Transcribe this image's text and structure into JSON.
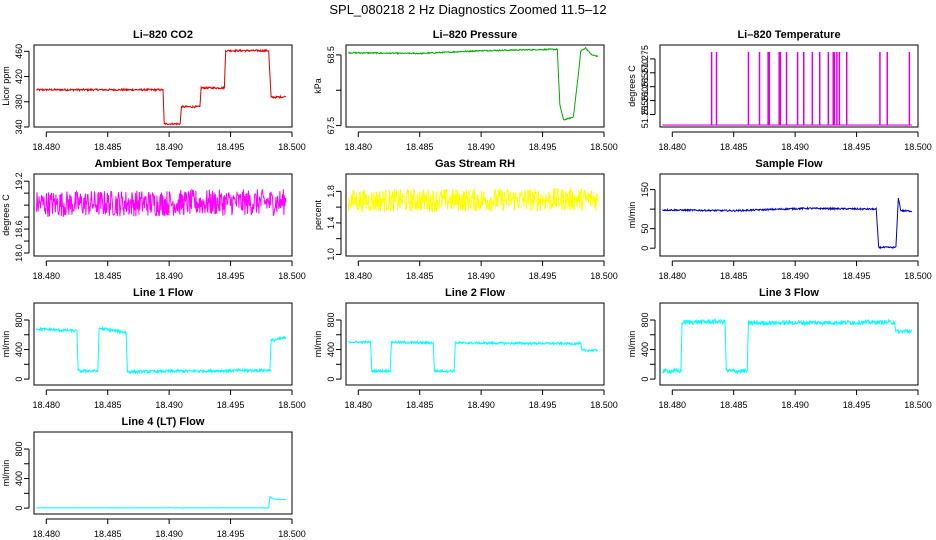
{
  "figure": {
    "title": "SPL_080218 2 Hz Diagnostics Zoomed 11.5–12"
  },
  "chart_data": [
    {
      "type": "line",
      "title": "Li–820 CO2",
      "xlabel": "",
      "ylabel": "Licor ppm",
      "xlim": [
        18.479,
        18.5
      ],
      "ylim": [
        340,
        470
      ],
      "xticks": [
        18.48,
        18.485,
        18.49,
        18.495,
        18.5
      ],
      "xtick_labels": [
        "18.480",
        "18.485",
        "18.490",
        "18.495",
        "18.500"
      ],
      "yticks": [
        340,
        380,
        420,
        460
      ],
      "ytick_labels": [
        "340",
        "380",
        "420",
        "460"
      ],
      "color": "#dd0000",
      "noise": 1.5,
      "series": [
        {
          "x": [
            18.4792,
            18.4895,
            18.4896,
            18.4909,
            18.491,
            18.4925,
            18.4926,
            18.4945,
            18.4946,
            18.4981,
            18.4983,
            18.4995
          ],
          "y": [
            399,
            399,
            345,
            345,
            372,
            372,
            402,
            402,
            461,
            461,
            387,
            388
          ]
        }
      ]
    },
    {
      "type": "line",
      "title": "Li–820 Pressure",
      "xlabel": "",
      "ylabel": "kPa",
      "xlim": [
        18.479,
        18.5
      ],
      "ylim": [
        67.48,
        68.64
      ],
      "xticks": [
        18.48,
        18.485,
        18.49,
        18.495,
        18.5
      ],
      "xtick_labels": [
        "18.480",
        "18.485",
        "18.490",
        "18.495",
        "18.500"
      ],
      "yticks": [
        67.5,
        68.0,
        68.5
      ],
      "ytick_labels": [
        "67.5",
        "",
        "68.5"
      ],
      "color": "#00aa00",
      "noise": 0.008,
      "series": [
        {
          "x": [
            18.4792,
            18.485,
            18.49,
            18.4962,
            18.4964,
            18.4967,
            18.4975,
            18.4979,
            18.4981,
            18.4985,
            18.499,
            18.4995
          ],
          "y": [
            68.53,
            68.52,
            68.56,
            68.58,
            67.8,
            67.58,
            67.62,
            68.2,
            68.55,
            68.6,
            68.5,
            68.48
          ]
        }
      ]
    },
    {
      "type": "line",
      "title": "Li–820 Temperature",
      "xlabel": "",
      "ylabel": "degrees C",
      "xlim": [
        18.479,
        18.5
      ],
      "ylim": [
        51.2505,
        51.28
      ],
      "xticks": [
        18.48,
        18.485,
        18.49,
        18.495,
        18.5
      ],
      "xtick_labels": [
        "18.480",
        "18.485",
        "18.490",
        "18.495",
        "18.500"
      ],
      "yticks": [
        51.255,
        51.26,
        51.265,
        51.27,
        51.275
      ],
      "ytick_labels": [
        "51.255",
        "51.260",
        "51.265",
        "51.270",
        "51.275"
      ],
      "color": "#dd00dd",
      "noise": 0,
      "baseline": 51.2512,
      "spikes": [
        18.4832,
        18.4836,
        18.4862,
        18.4871,
        18.4878,
        18.4879,
        18.4887,
        18.4888,
        18.4893,
        18.4902,
        18.4907,
        18.4914,
        18.492,
        18.4927,
        18.4931,
        18.4932,
        18.4934,
        18.4936,
        18.4942,
        18.4969,
        18.4975,
        18.4993
      ],
      "spike_top": 51.2775
    },
    {
      "type": "line",
      "title": "Ambient Box Temperature",
      "xlabel": "",
      "ylabel": "degrees C",
      "xlim": [
        18.479,
        18.5
      ],
      "ylim": [
        17.95,
        19.32
      ],
      "xticks": [
        18.48,
        18.485,
        18.49,
        18.495,
        18.5
      ],
      "xtick_labels": [
        "18.480",
        "18.485",
        "18.490",
        "18.495",
        "18.500"
      ],
      "yticks": [
        18.0,
        18.2,
        18.4,
        18.6,
        18.8,
        19.0,
        19.2
      ],
      "ytick_labels": [
        "18.0",
        "",
        "18.6",
        "",
        "",
        "",
        "19.2"
      ],
      "color": "#ff00ff",
      "noise": 0.22,
      "series": [
        {
          "x": [
            18.4792,
            18.4995
          ],
          "y": [
            18.82,
            18.85
          ]
        }
      ]
    },
    {
      "type": "line",
      "title": "Gas Stream RH",
      "xlabel": "",
      "ylabel": "percent",
      "xlim": [
        18.479,
        18.5
      ],
      "ylim": [
        0.98,
        2.02
      ],
      "xticks": [
        18.48,
        18.485,
        18.49,
        18.495,
        18.5
      ],
      "xtick_labels": [
        "18.480",
        "18.485",
        "18.490",
        "18.495",
        "18.500"
      ],
      "yticks": [
        1.0,
        1.2,
        1.4,
        1.6,
        1.8
      ],
      "ytick_labels": [
        "1.0",
        "",
        "1.4",
        "",
        "1.8"
      ],
      "color": "#ffff00",
      "noise": 0.15,
      "series": [
        {
          "x": [
            18.4792,
            18.4995
          ],
          "y": [
            1.68,
            1.7
          ]
        }
      ]
    },
    {
      "type": "line",
      "title": "Sample Flow",
      "xlabel": "",
      "ylabel": "ml/min",
      "xlim": [
        18.479,
        18.5
      ],
      "ylim": [
        -20,
        190
      ],
      "xticks": [
        18.48,
        18.485,
        18.49,
        18.495,
        18.5
      ],
      "xtick_labels": [
        "18.480",
        "18.485",
        "18.490",
        "18.495",
        "18.500"
      ],
      "yticks": [
        0,
        50,
        100,
        150
      ],
      "ytick_labels": [
        "0",
        "50",
        "",
        "150"
      ],
      "color": "#0000bb",
      "noise": 2,
      "series": [
        {
          "x": [
            18.4792,
            18.485,
            18.4908,
            18.4966,
            18.4968,
            18.4982,
            18.4984,
            18.4986,
            18.4995
          ],
          "y": [
            98,
            96,
            102,
            100,
            2,
            2,
            130,
            96,
            95
          ]
        }
      ]
    },
    {
      "type": "line",
      "title": "Line 1 Flow",
      "xlabel": "",
      "ylabel": "ml/min",
      "xlim": [
        18.479,
        18.5
      ],
      "ylim": [
        -80,
        1030
      ],
      "xticks": [
        18.48,
        18.485,
        18.49,
        18.495,
        18.5
      ],
      "xtick_labels": [
        "18.480",
        "18.485",
        "18.490",
        "18.495",
        "18.500"
      ],
      "yticks": [
        0,
        200,
        400,
        600,
        800
      ],
      "ytick_labels": [
        "0",
        "",
        "400",
        "",
        "800"
      ],
      "color": "#00ffff",
      "noise": 20,
      "series": [
        {
          "x": [
            18.4792,
            18.4825,
            18.4826,
            18.4842,
            18.4843,
            18.4865,
            18.4866,
            18.4982,
            18.4983,
            18.4995
          ],
          "y": [
            680,
            650,
            110,
            110,
            690,
            630,
            100,
            120,
            520,
            560
          ]
        }
      ]
    },
    {
      "type": "line",
      "title": "Line 2 Flow",
      "xlabel": "",
      "ylabel": "ml/min",
      "xlim": [
        18.479,
        18.5
      ],
      "ylim": [
        -80,
        1030
      ],
      "xticks": [
        18.48,
        18.485,
        18.49,
        18.495,
        18.5
      ],
      "xtick_labels": [
        "18.480",
        "18.485",
        "18.490",
        "18.495",
        "18.500"
      ],
      "yticks": [
        0,
        200,
        400,
        600,
        800
      ],
      "ytick_labels": [
        "0",
        "",
        "400",
        "",
        "800"
      ],
      "color": "#00ffff",
      "noise": 15,
      "series": [
        {
          "x": [
            18.4792,
            18.481,
            18.4811,
            18.4826,
            18.4827,
            18.4861,
            18.4862,
            18.4878,
            18.4879,
            18.4981,
            18.4982,
            18.4995
          ],
          "y": [
            500,
            500,
            110,
            110,
            500,
            490,
            110,
            110,
            490,
            480,
            390,
            390
          ]
        }
      ]
    },
    {
      "type": "line",
      "title": "Line 3 Flow",
      "xlabel": "",
      "ylabel": "ml/min",
      "xlim": [
        18.479,
        18.5
      ],
      "ylim": [
        -80,
        1030
      ],
      "xticks": [
        18.48,
        18.485,
        18.49,
        18.495,
        18.5
      ],
      "xtick_labels": [
        "18.480",
        "18.485",
        "18.490",
        "18.495",
        "18.500"
      ],
      "yticks": [
        0,
        200,
        400,
        600,
        800
      ],
      "ytick_labels": [
        "0",
        "",
        "400",
        "",
        "800"
      ],
      "color": "#00ffff",
      "noise": 30,
      "series": [
        {
          "x": [
            18.4792,
            18.4807,
            18.4808,
            18.4843,
            18.4844,
            18.4861,
            18.4862,
            18.4981,
            18.4982,
            18.4995
          ],
          "y": [
            110,
            110,
            770,
            780,
            110,
            110,
            760,
            770,
            640,
            650
          ]
        }
      ]
    },
    {
      "type": "line",
      "title": "Line 4 (LT) Flow",
      "xlabel": "",
      "ylabel": "ml/min",
      "xlim": [
        18.479,
        18.5
      ],
      "ylim": [
        -80,
        1030
      ],
      "xticks": [
        18.48,
        18.485,
        18.49,
        18.495,
        18.5
      ],
      "xtick_labels": [
        "18.480",
        "18.485",
        "18.490",
        "18.495",
        "18.500"
      ],
      "yticks": [
        0,
        200,
        400,
        600,
        800
      ],
      "ytick_labels": [
        "0",
        "",
        "400",
        "",
        "800"
      ],
      "color": "#00ffff",
      "noise": 2,
      "series": [
        {
          "x": [
            18.4792,
            18.4981,
            18.4982,
            18.4984,
            18.4988,
            18.4995
          ],
          "y": [
            3,
            3,
            160,
            130,
            115,
            115
          ]
        }
      ]
    }
  ]
}
